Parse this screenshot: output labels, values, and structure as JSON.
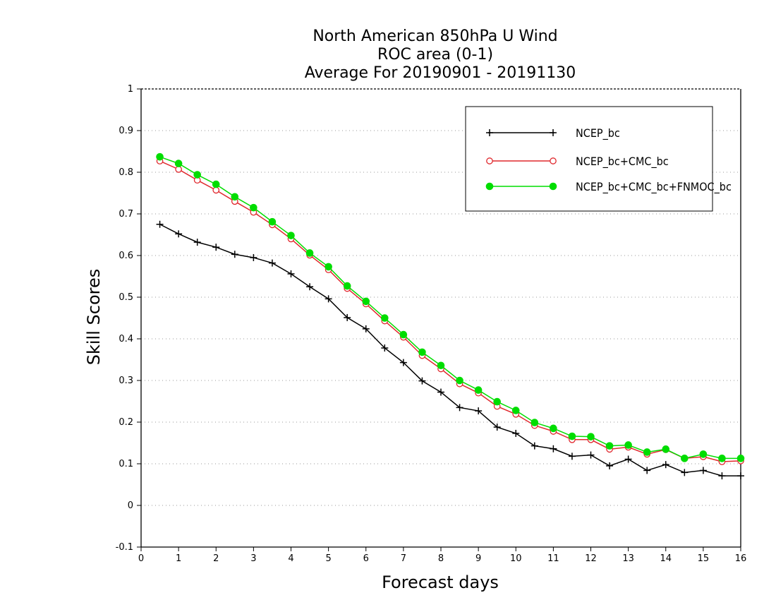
{
  "chart_data": {
    "type": "line",
    "title_lines": [
      "North American 850hPa U Wind",
      "ROC area (0-1)",
      "Average For 20190901 - 20191130"
    ],
    "xlabel": "Forecast days",
    "ylabel": "Skill Scores",
    "xlim": [
      0,
      16
    ],
    "ylim": [
      -0.1,
      1
    ],
    "xticks": [
      0,
      1,
      2,
      3,
      4,
      5,
      6,
      7,
      8,
      9,
      10,
      11,
      12,
      13,
      14,
      15,
      16
    ],
    "yticks": [
      -0.1,
      0,
      0.1,
      0.2,
      0.3,
      0.4,
      0.5,
      0.6,
      0.7,
      0.8,
      0.9,
      1
    ],
    "ytick_labels": [
      "-0.1",
      "0",
      "0.1",
      "0.2",
      "0.3",
      "0.4",
      "0.5",
      "0.6",
      "0.7",
      "0.8",
      "0.9",
      "1"
    ],
    "grid": "horizontal dotted",
    "legend_position": "top-right",
    "x": [
      0.5,
      1,
      1.5,
      2,
      2.5,
      3,
      3.5,
      4,
      4.5,
      5,
      5.5,
      6,
      6.5,
      7,
      7.5,
      8,
      8.5,
      9,
      9.5,
      10,
      10.5,
      11,
      11.5,
      12,
      12.5,
      13,
      13.5,
      14,
      14.5,
      15,
      15.5,
      16
    ],
    "series": [
      {
        "name": "NCEP_bc",
        "color": "#000000",
        "marker": "plus",
        "values": [
          0.675,
          0.652,
          0.632,
          0.62,
          0.603,
          0.595,
          0.582,
          0.556,
          0.525,
          0.496,
          0.451,
          0.424,
          0.378,
          0.343,
          0.299,
          0.272,
          0.235,
          0.227,
          0.188,
          0.173,
          0.143,
          0.136,
          0.118,
          0.121,
          0.095,
          0.111,
          0.084,
          0.098,
          0.079,
          0.084,
          0.071,
          0.071
        ]
      },
      {
        "name": "NCEP_bc+CMC_bc",
        "color": "#e0282d",
        "marker": "open-circle",
        "values": [
          0.827,
          0.807,
          0.781,
          0.757,
          0.73,
          0.704,
          0.674,
          0.64,
          0.601,
          0.566,
          0.521,
          0.484,
          0.443,
          0.404,
          0.36,
          0.328,
          0.292,
          0.27,
          0.238,
          0.219,
          0.192,
          0.178,
          0.158,
          0.158,
          0.135,
          0.14,
          0.123,
          0.134,
          0.113,
          0.117,
          0.105,
          0.107
        ]
      },
      {
        "name": "NCEP_bc+CMC_bc+FNMOC_bc",
        "color": "#00dd00",
        "marker": "filled-circle",
        "values": [
          0.837,
          0.821,
          0.794,
          0.771,
          0.741,
          0.715,
          0.681,
          0.648,
          0.606,
          0.573,
          0.527,
          0.49,
          0.45,
          0.41,
          0.368,
          0.336,
          0.3,
          0.277,
          0.249,
          0.228,
          0.199,
          0.185,
          0.166,
          0.165,
          0.143,
          0.145,
          0.128,
          0.135,
          0.113,
          0.123,
          0.113,
          0.113
        ]
      }
    ]
  }
}
